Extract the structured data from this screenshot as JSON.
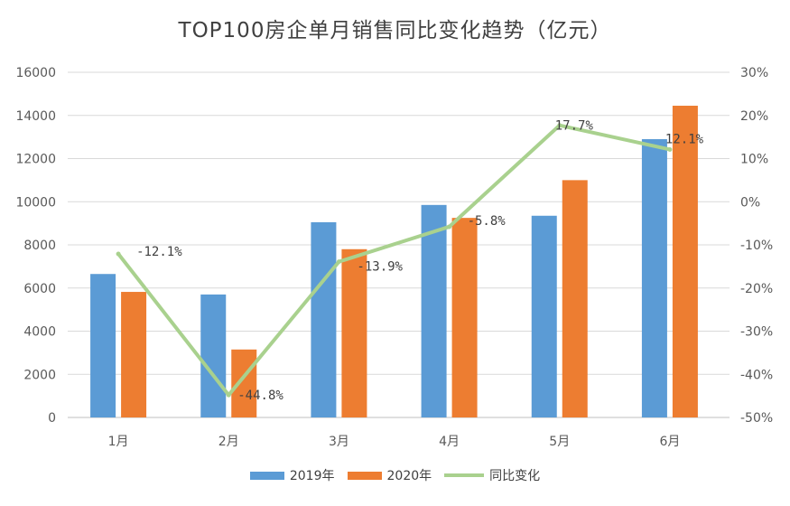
{
  "chart_data": {
    "type": "bar",
    "title": "TOP100房企单月销售同比变化趋势（亿元）",
    "categories": [
      "1月",
      "2月",
      "3月",
      "4月",
      "5月",
      "6月"
    ],
    "series": [
      {
        "name": "2019年",
        "kind": "bar",
        "axis": "left",
        "color": "#5b9bd5",
        "values": [
          6650,
          5700,
          9050,
          9850,
          9350,
          12900
        ]
      },
      {
        "name": "2020年",
        "kind": "bar",
        "axis": "left",
        "color": "#ed7d31",
        "values": [
          5820,
          3150,
          7800,
          9250,
          11000,
          14450
        ]
      },
      {
        "name": "同比变化",
        "kind": "line",
        "axis": "right",
        "color": "#a9d18e",
        "values": [
          -12.1,
          -44.8,
          -13.9,
          -5.8,
          17.7,
          12.1
        ],
        "labels": [
          "-12.1%",
          "-44.8%",
          "-13.9%",
          "-5.8%",
          "17.7%",
          "12.1%"
        ]
      }
    ],
    "y_left": {
      "lim": [
        0,
        16000
      ],
      "ticks": [
        0,
        2000,
        4000,
        6000,
        8000,
        10000,
        12000,
        14000,
        16000
      ],
      "tick_labels": [
        "0",
        "2000",
        "4000",
        "6000",
        "8000",
        "10000",
        "12000",
        "14000",
        "16000"
      ]
    },
    "y_right": {
      "lim": [
        -50,
        30
      ],
      "ticks": [
        -50,
        -40,
        -30,
        -20,
        -10,
        0,
        10,
        20,
        30
      ],
      "tick_labels": [
        "-50%",
        "-40%",
        "-30%",
        "-20%",
        "-10%",
        "0%",
        "10%",
        "20%",
        "30%"
      ]
    },
    "grid": true,
    "legend_position": "bottom"
  }
}
